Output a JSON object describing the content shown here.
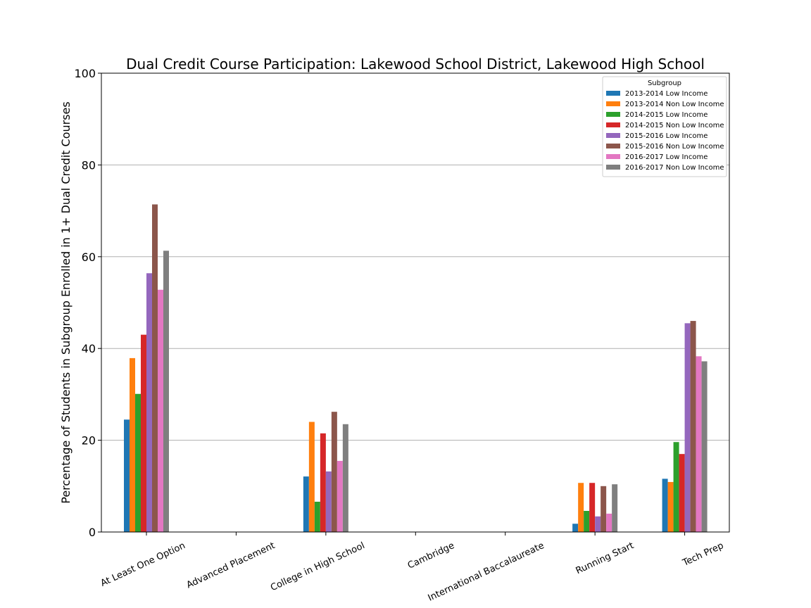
{
  "chart_data": {
    "type": "bar",
    "title": "Dual Credit Course Participation: Lakewood School District, Lakewood High School",
    "xlabel": "",
    "ylabel": "Percentage of Students in Subgroup Enrolled in 1+ Dual Credit Courses",
    "ylim": [
      0,
      100
    ],
    "yticks": [
      "0",
      "20",
      "40",
      "60",
      "80",
      "100"
    ],
    "grid": "horizontal",
    "legend_title": "Subgroup",
    "legend_position": "top-right",
    "categories": [
      "At Least One Option",
      "Advanced Placement",
      "College in High School",
      "Cambridge",
      "International Baccalaureate",
      "Running Start",
      "Tech Prep"
    ],
    "series": [
      {
        "name": "2013-2014 Low Income",
        "color": "#1f77b4",
        "values": [
          24.5,
          0,
          12.1,
          0,
          0,
          1.8,
          11.6
        ]
      },
      {
        "name": "2013-2014 Non Low Income",
        "color": "#ff7f0e",
        "values": [
          37.9,
          0,
          24.0,
          0,
          0,
          10.7,
          10.9
        ]
      },
      {
        "name": "2014-2015 Low Income",
        "color": "#2ca02c",
        "values": [
          30.1,
          0,
          6.6,
          0,
          0,
          4.6,
          19.6
        ]
      },
      {
        "name": "2014-2015 Non Low Income",
        "color": "#d62728",
        "values": [
          43.0,
          0,
          21.5,
          0,
          0,
          10.7,
          17.0
        ]
      },
      {
        "name": "2015-2016 Low Income",
        "color": "#9467bd",
        "values": [
          56.4,
          0,
          13.2,
          0,
          0,
          3.4,
          45.5
        ]
      },
      {
        "name": "2015-2016 Non Low Income",
        "color": "#8c564b",
        "values": [
          71.4,
          0,
          26.2,
          0,
          0,
          10.0,
          46.0
        ]
      },
      {
        "name": "2016-2017 Low Income",
        "color": "#e377c2",
        "values": [
          52.8,
          0,
          15.5,
          0,
          0,
          4.0,
          38.3
        ]
      },
      {
        "name": "2016-2017 Non Low Income",
        "color": "#7f7f7f",
        "values": [
          61.3,
          0,
          23.5,
          0,
          0,
          10.4,
          37.2
        ]
      }
    ]
  }
}
